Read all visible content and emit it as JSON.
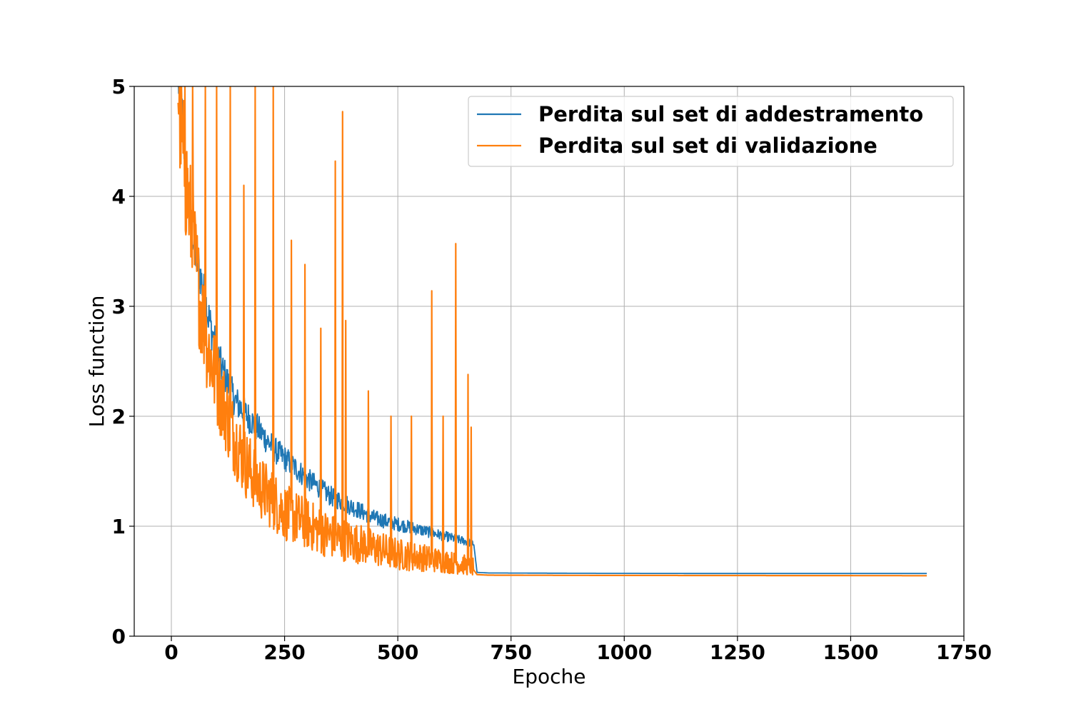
{
  "chart_data": {
    "type": "line",
    "xlabel": "Epoche",
    "ylabel": "Loss function",
    "xlim": [
      -82,
      1750
    ],
    "ylim": [
      0,
      5
    ],
    "xticks": [
      0,
      250,
      500,
      750,
      1000,
      1250,
      1500,
      1750
    ],
    "xtick_labels": [
      "0",
      "250",
      "500",
      "750",
      "1000",
      "1250",
      "1500",
      "1750"
    ],
    "yticks": [
      0,
      1,
      2,
      3,
      4,
      5
    ],
    "ytick_labels": [
      "0",
      "1",
      "2",
      "3",
      "4",
      "5"
    ],
    "grid": true,
    "legend_position": "top-right",
    "series": [
      {
        "name": "Perdita sul set di addestramento",
        "color": "#1f77b4",
        "x": [
          15,
          25,
          35,
          50,
          70,
          90,
          110,
          140,
          170,
          200,
          230,
          260,
          300,
          350,
          400,
          450,
          500,
          550,
          600,
          650,
          668,
          675,
          700,
          900,
          1200,
          1500,
          1668
        ],
        "y": [
          5.0,
          4.6,
          4.0,
          3.5,
          3.1,
          2.7,
          2.4,
          2.1,
          1.95,
          1.8,
          1.65,
          1.55,
          1.4,
          1.25,
          1.15,
          1.05,
          1.0,
          0.95,
          0.9,
          0.85,
          0.83,
          0.58,
          0.575,
          0.572,
          0.57,
          0.57,
          0.57
        ]
      },
      {
        "name": "Perdita sul set di validazione",
        "color": "#ff7f0e",
        "x": [
          15,
          25,
          40,
          60,
          80,
          100,
          130,
          160,
          200,
          250,
          300,
          350,
          400,
          450,
          500,
          550,
          600,
          650,
          668,
          675,
          700,
          900,
          1200,
          1500,
          1668
        ],
        "y": [
          4.8,
          4.2,
          3.7,
          3.0,
          2.5,
          2.2,
          1.8,
          1.5,
          1.25,
          1.05,
          0.95,
          0.85,
          0.8,
          0.75,
          0.7,
          0.68,
          0.65,
          0.62,
          0.6,
          0.56,
          0.555,
          0.553,
          0.552,
          0.551,
          0.55
        ]
      }
    ],
    "annotated_spikes": {
      "validation": [
        {
          "x": 20,
          "y": 5.0
        },
        {
          "x": 30,
          "y": 5.0
        },
        {
          "x": 47,
          "y": 5.0
        },
        {
          "x": 75,
          "y": 5.0
        },
        {
          "x": 100,
          "y": 5.0
        },
        {
          "x": 130,
          "y": 5.0
        },
        {
          "x": 160,
          "y": 4.1
        },
        {
          "x": 185,
          "y": 5.0
        },
        {
          "x": 225,
          "y": 5.0
        },
        {
          "x": 265,
          "y": 3.6
        },
        {
          "x": 295,
          "y": 3.38
        },
        {
          "x": 330,
          "y": 2.8
        },
        {
          "x": 362,
          "y": 4.32
        },
        {
          "x": 378,
          "y": 4.77
        },
        {
          "x": 385,
          "y": 2.87
        },
        {
          "x": 435,
          "y": 2.23
        },
        {
          "x": 485,
          "y": 2.0
        },
        {
          "x": 530,
          "y": 2.0
        },
        {
          "x": 575,
          "y": 3.14
        },
        {
          "x": 600,
          "y": 2.0
        },
        {
          "x": 628,
          "y": 3.57
        },
        {
          "x": 655,
          "y": 2.38
        },
        {
          "x": 662,
          "y": 1.9
        }
      ]
    }
  }
}
